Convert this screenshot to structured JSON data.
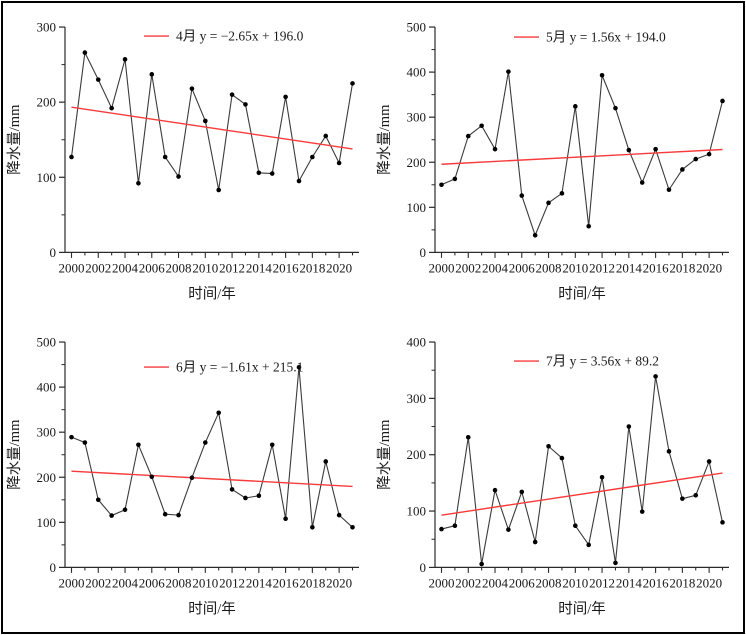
{
  "style": {
    "background": "#ffffff",
    "frame_border": "#000000",
    "axis_color": "#2b2b2b",
    "text_color": "#1a1a1a",
    "data_line_color": "#3b3b3b",
    "marker_color": "#000000",
    "trend_color": "#f73b3b"
  },
  "axes": {
    "xlabel": "时间/年",
    "ylabel": "降水量/mm",
    "years": [
      2000,
      2001,
      2002,
      2003,
      2004,
      2005,
      2006,
      2007,
      2008,
      2009,
      2010,
      2011,
      2012,
      2013,
      2014,
      2015,
      2016,
      2017,
      2018,
      2019,
      2020,
      2021
    ],
    "x_tick_labels": [
      "2000",
      "2002",
      "2004",
      "2006",
      "2008",
      "2010",
      "2012",
      "2014",
      "2016",
      "2018",
      "2020"
    ]
  },
  "chart_data": [
    {
      "type": "line",
      "month_label": "4月",
      "equation": "y = −2.65x + 196.0",
      "trend": {
        "slope": -2.65,
        "intercept": 196.0
      },
      "xlabel": "时间/年",
      "ylabel": "降水量/mm",
      "ylim": [
        0,
        300
      ],
      "yticks": [
        0,
        100,
        200,
        300
      ],
      "y_minor_step": 50,
      "values": [
        127,
        266,
        230,
        192,
        257,
        92,
        237,
        127,
        101,
        218,
        175,
        83,
        210,
        197,
        106,
        105,
        207,
        95,
        127,
        155,
        119,
        225
      ]
    },
    {
      "type": "line",
      "month_label": "5月",
      "equation": "y = 1.56x + 194.0",
      "trend": {
        "slope": 1.56,
        "intercept": 194.0
      },
      "xlabel": "时间/年",
      "ylabel": "降水量/mm",
      "ylim": [
        0,
        500
      ],
      "yticks": [
        0,
        100,
        200,
        300,
        400,
        500
      ],
      "y_minor_step": 50,
      "values": [
        150,
        163,
        258,
        281,
        229,
        401,
        126,
        38,
        110,
        131,
        324,
        58,
        393,
        320,
        227,
        155,
        229,
        139,
        184,
        207,
        218,
        336
      ]
    },
    {
      "type": "line",
      "month_label": "6月",
      "equation": "y = −1.61x + 215.1",
      "trend": {
        "slope": -1.61,
        "intercept": 215.1
      },
      "xlabel": "时间/年",
      "ylabel": "降水量/mm",
      "ylim": [
        0,
        500
      ],
      "yticks": [
        0,
        100,
        200,
        300,
        400,
        500
      ],
      "y_minor_step": 50,
      "values": [
        289,
        277,
        150,
        115,
        128,
        272,
        201,
        118,
        116,
        199,
        277,
        343,
        173,
        154,
        159,
        272,
        108,
        444,
        89,
        235,
        116,
        89
      ]
    },
    {
      "type": "line",
      "month_label": "7月",
      "equation": "y = 3.56x + 89.2",
      "trend": {
        "slope": 3.56,
        "intercept": 89.2
      },
      "xlabel": "时间/年",
      "ylabel": "降水量/mm",
      "ylim": [
        0,
        400
      ],
      "yticks": [
        0,
        100,
        200,
        300,
        400
      ],
      "y_minor_step": 50,
      "values": [
        68,
        74,
        231,
        6,
        137,
        67,
        134,
        45,
        215,
        194,
        74,
        40,
        160,
        8,
        250,
        99,
        339,
        206,
        122,
        128,
        188,
        80
      ]
    }
  ]
}
